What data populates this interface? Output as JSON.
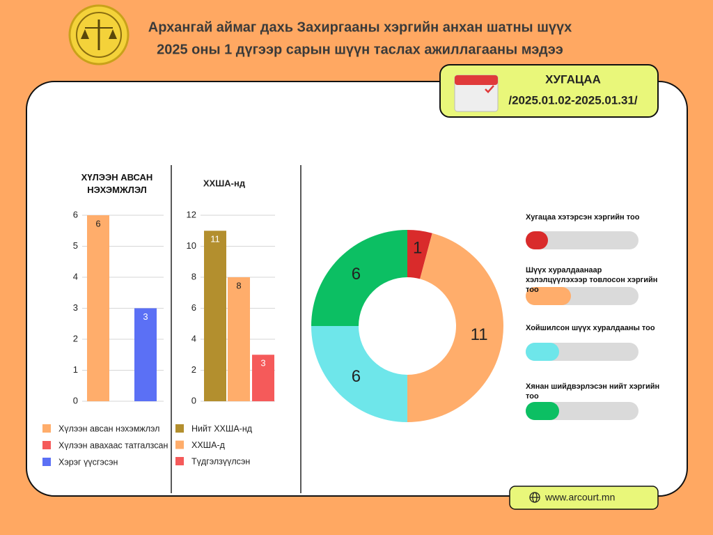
{
  "header": {
    "lines": [
      "Архангай аймаг дахь Захиргааны хэргийн анхан шатны шүүх",
      "2025 оны 1 дүгээр сарын шүүн таслах ажиллагааны мэдээ"
    ]
  },
  "period": {
    "label": "ХУГАЦАА",
    "range": "/2025.01.02-2025.01.31/"
  },
  "footer": {
    "website": "www.arcourt.mn"
  },
  "chart_data": [
    {
      "type": "bar",
      "title": "ХҮЛЭЭН АВСАН НЭХЭМЖЛЭЛ",
      "categories": [
        "Хүлээн авсан нэхэмжлэл",
        "Хүлээн авахаас татгалзсан",
        "Хэрэг үүсгэсэн"
      ],
      "values": [
        6,
        0,
        3
      ],
      "colors": [
        "#ffad6b",
        "#f55a5a",
        "#5b70f5"
      ],
      "ylim": [
        0,
        6
      ],
      "yticks": [
        0,
        1,
        2,
        3,
        4,
        5,
        6
      ],
      "grid": true
    },
    {
      "type": "bar",
      "title": "ХХША-нд",
      "categories": [
        "Нийт ХХША-нд",
        "ХХША-д",
        "Түдгэлзүүлсэн"
      ],
      "values": [
        11,
        8,
        3
      ],
      "colors": [
        "#b38f2e",
        "#ffad6b",
        "#f55a5a"
      ],
      "ylim": [
        0,
        12
      ],
      "yticks": [
        0,
        2,
        4,
        6,
        8,
        10,
        12
      ],
      "grid": true
    },
    {
      "type": "donut",
      "categories": [
        "Хугацаа хэтэрсэн хэргийн тоо",
        "Шүүх хуралдаанаар хэлэлцүүлэхээр товлосон хэргийн тоо",
        "Хойшилсон шүүх хуралдааны тоо",
        "Хянан шийдвэрлэсэн нийт хэргийн тоо"
      ],
      "values": [
        1,
        11,
        6,
        6
      ],
      "colors": [
        "#d92b2b",
        "#ffad6b",
        "#6ee6ea",
        "#0cbf63"
      ]
    }
  ]
}
